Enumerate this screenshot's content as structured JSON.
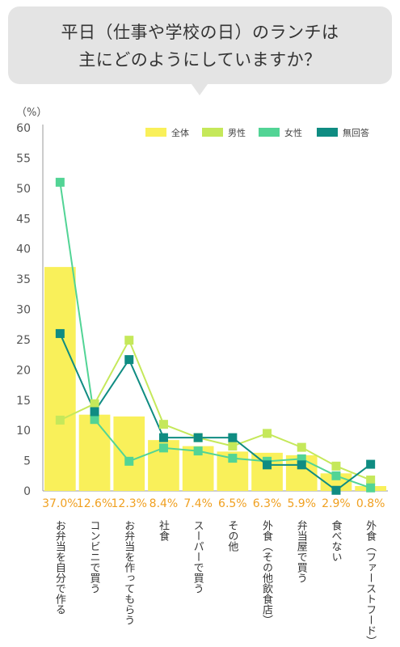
{
  "header": {
    "title_line_1": "平日（仕事や学校の日）のランチは",
    "title_line_2": "主にどのようにしていますか？"
  },
  "chart_data": {
    "type": "bar",
    "y_unit_label": "（%）",
    "ylim": [
      0,
      60
    ],
    "yticks": [
      0,
      5,
      10,
      15,
      20,
      25,
      30,
      35,
      40,
      45,
      50,
      55,
      60
    ],
    "categories": [
      "お弁当を自分で作る",
      "コンビニで買う",
      "お弁当を作ってもらう",
      "社食",
      "スーパーで買う",
      "その他",
      "外食（その他飲食店）",
      "弁当屋で買う",
      "食べない",
      "外食（ファーストフード）"
    ],
    "bar_series": {
      "name": "全体",
      "values": [
        37.0,
        12.6,
        12.3,
        8.4,
        7.4,
        6.5,
        6.3,
        5.9,
        2.9,
        0.8
      ],
      "value_labels": [
        "37.0%",
        "12.6%",
        "12.3%",
        "8.4%",
        "7.4%",
        "6.5%",
        "6.3%",
        "5.9%",
        "2.9%",
        "0.8%"
      ],
      "color": "#f9f05a"
    },
    "line_series": [
      {
        "name": "男性",
        "values": [
          11.7,
          14.4,
          24.9,
          11.0,
          8.8,
          7.4,
          9.5,
          7.2,
          4.1,
          1.8
        ],
        "color": "#c5e85a"
      },
      {
        "name": "女性",
        "values": [
          51.0,
          11.8,
          4.9,
          7.1,
          6.6,
          5.4,
          4.9,
          5.3,
          2.5,
          0.5
        ],
        "color": "#52d495"
      },
      {
        "name": "無回答",
        "values": [
          26.0,
          13.1,
          21.7,
          8.8,
          8.8,
          8.8,
          4.3,
          4.3,
          0.1,
          4.4
        ],
        "color": "#0f8c82"
      }
    ],
    "legend_position": "top-right",
    "grid": false,
    "colors": {
      "axis_text": "#555555",
      "value_label": "#f0a020",
      "category_text": "#333333"
    }
  }
}
